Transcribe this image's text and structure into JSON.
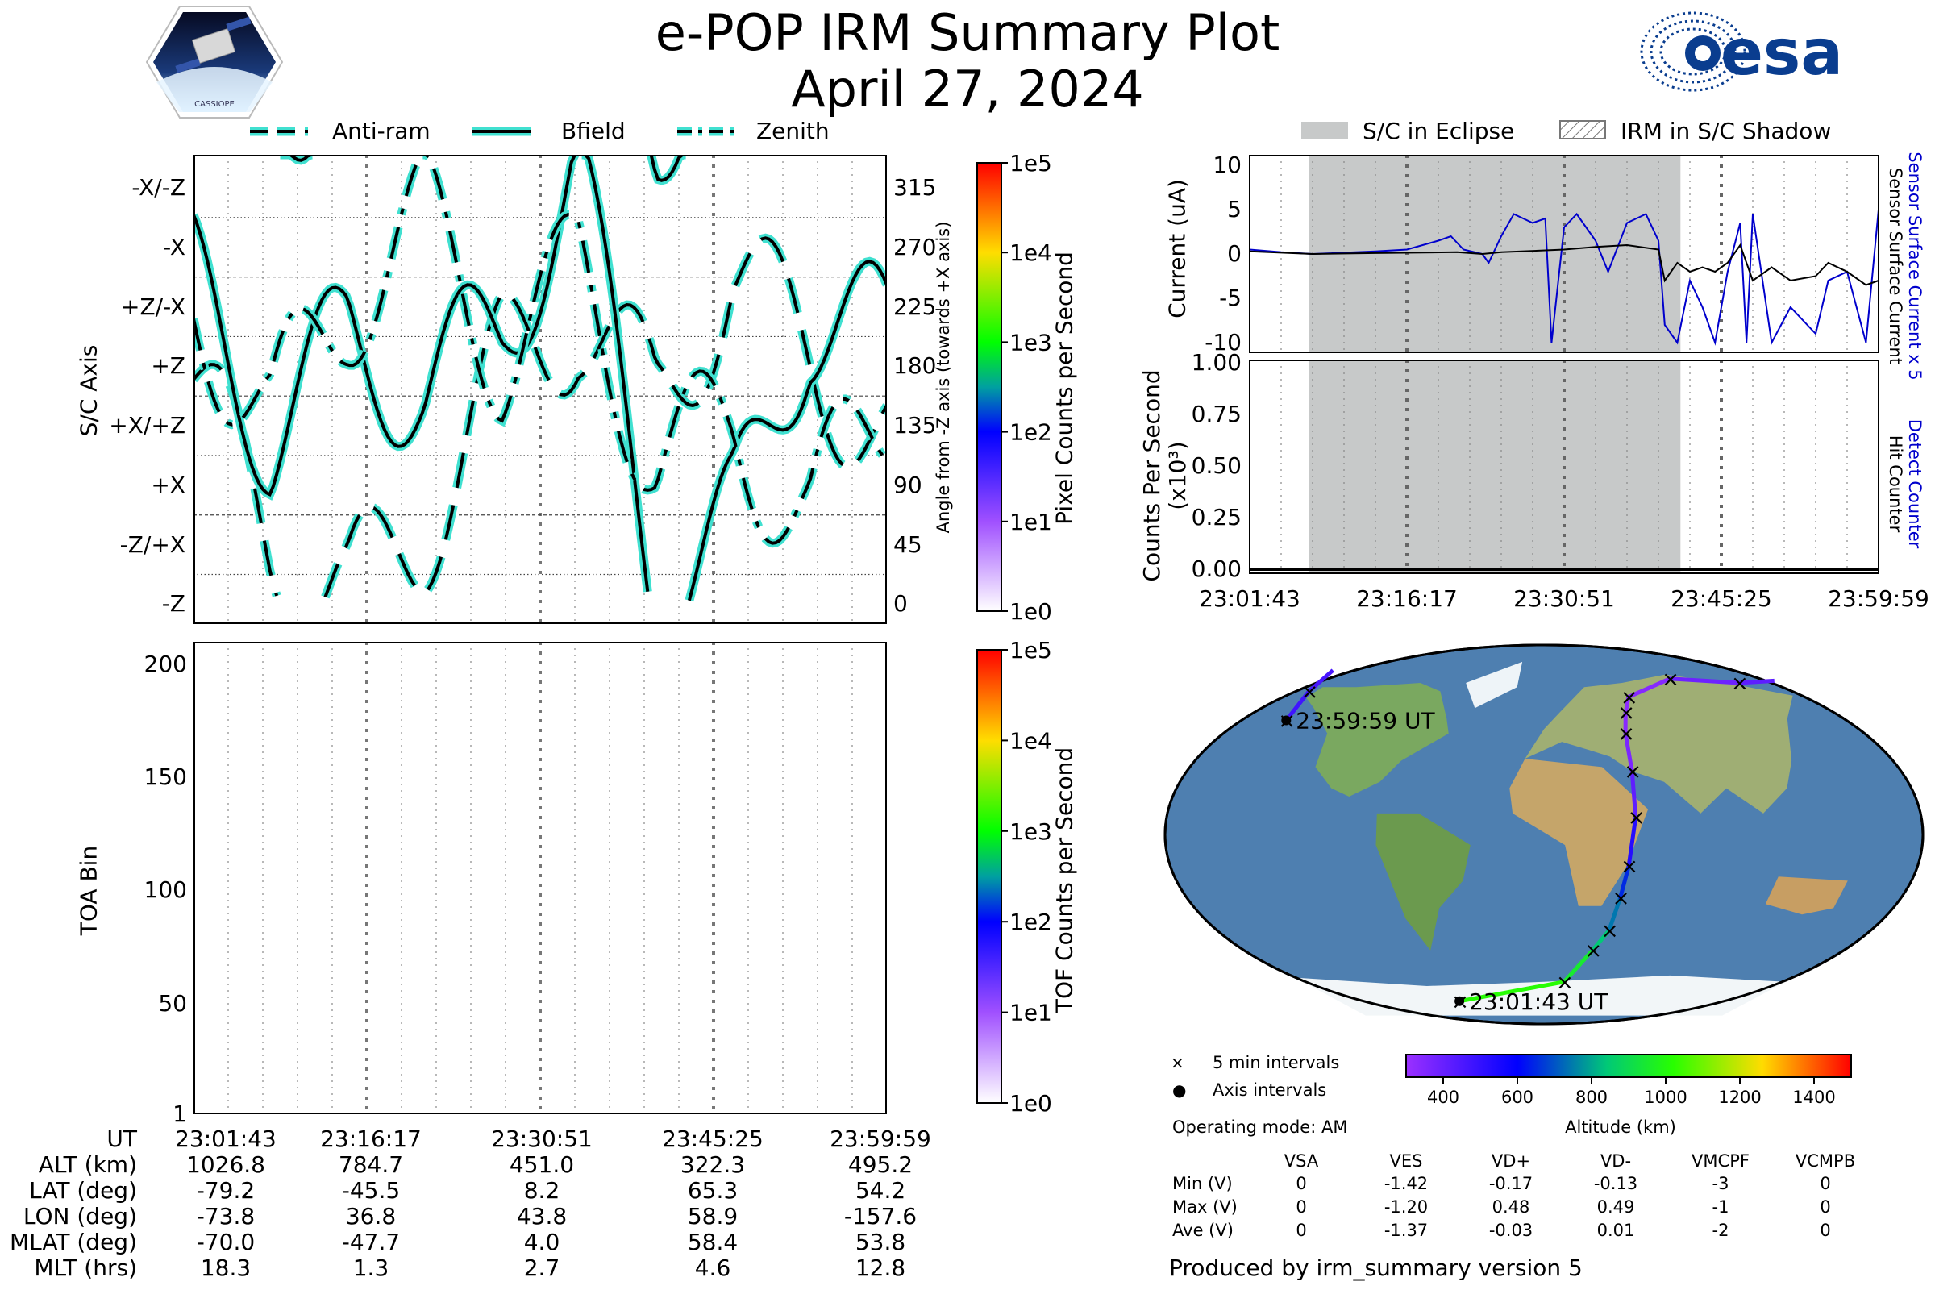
{
  "title": "e-POP IRM Summary Plot",
  "date": "April 27, 2024",
  "logos": {
    "left": "CASSIOPE",
    "right": "esa"
  },
  "colors": {
    "trace_fill": "#40e0d0",
    "trace_edge": "#000000",
    "eclipse": "#c7c9c9",
    "sensor": "#0000cc",
    "surface": "#000000",
    "track_low": "#9b30ff",
    "track_high": "#ff0000"
  },
  "orientation_legend": [
    {
      "label": "Anti-ram",
      "style": "dash"
    },
    {
      "label": "Bfield",
      "style": "solid"
    },
    {
      "label": "Zenith",
      "style": "dashdot"
    }
  ],
  "eclipse_legend": [
    {
      "label": "S/C in Eclipse",
      "style": "fill"
    },
    {
      "label": "IRM in S/C Shadow",
      "style": "hatch"
    }
  ],
  "chart_data": [
    {
      "type": "line",
      "name": "orientation",
      "ylabel": "S/C Axis",
      "y2label": "Angle from -Z axis (towards +X axis)",
      "ytick_labels": [
        "-Z",
        "-Z/+X",
        "+X",
        "+X/+Z",
        "+Z",
        "+Z/-X",
        "-X",
        "-X/-Z"
      ],
      "y2ticks": [
        0,
        45,
        90,
        135,
        180,
        225,
        270,
        315
      ],
      "ylim": [
        -15,
        340
      ],
      "series": [
        {
          "name": "Anti-ram",
          "style": "dash",
          "values": [
            170,
            45,
            5,
            60,
            180,
            220,
            150,
            250,
            190,
            120
          ]
        },
        {
          "name": "Bfield",
          "style": "solid",
          "values": [
            240,
            130,
            200,
            160,
            210,
            330,
            10,
            60,
            220,
            200
          ]
        },
        {
          "name": "Zenith",
          "style": "dashdot",
          "values": [
            230,
            140,
            230,
            290,
            190,
            250,
            110,
            130,
            70,
            150
          ]
        }
      ],
      "colorbar": {
        "label": "Pixel Counts per Second",
        "ticks": [
          "1e0",
          "1e1",
          "1e2",
          "1e3",
          "1e4",
          "1e5"
        ]
      }
    },
    {
      "type": "heatmap",
      "name": "toa",
      "ylabel": "TOA Bin",
      "yticks": [
        1,
        50,
        100,
        150,
        200
      ],
      "ylim": [
        1,
        210
      ],
      "values": [],
      "colorbar": {
        "label": "TOF Counts per Second",
        "ticks": [
          "1e0",
          "1e1",
          "1e2",
          "1e3",
          "1e4",
          "1e5"
        ]
      }
    },
    {
      "type": "line",
      "name": "current",
      "ylabel": "Current (uA)",
      "y2label_top": "Sensor Surface Current x 5",
      "y2label_bottom": "Sensor Surface Current",
      "yticks": [
        -10,
        -5,
        0,
        5,
        10
      ],
      "ylim": [
        -11,
        11
      ],
      "x_tick_labels": [
        "23:01:43",
        "23:16:17",
        "23:30:51",
        "23:45:25",
        "23:59:59"
      ],
      "eclipse_range_fraction": [
        0.094,
        0.685
      ],
      "series": [
        {
          "name": "Sensor Surface Current x 5",
          "color": "#0000cc",
          "x": [
            0,
            0.05,
            0.1,
            0.2,
            0.25,
            0.3,
            0.32,
            0.34,
            0.37,
            0.38,
            0.4,
            0.42,
            0.45,
            0.47,
            0.48,
            0.5,
            0.52,
            0.55,
            0.57,
            0.6,
            0.63,
            0.65,
            0.66,
            0.68,
            0.7,
            0.72,
            0.74,
            0.76,
            0.78,
            0.79,
            0.8,
            0.83,
            0.86,
            0.9,
            0.92,
            0.95,
            0.98,
            1.0
          ],
          "y": [
            0.5,
            0.2,
            0.0,
            0.3,
            0.5,
            1.5,
            2.0,
            0.5,
            0.0,
            -1.0,
            2.0,
            4.5,
            3.5,
            4.0,
            -10.0,
            3.0,
            4.5,
            1.5,
            -2.0,
            3.5,
            4.5,
            1.5,
            -8.0,
            -10.0,
            -3.0,
            -6.0,
            -10.0,
            -2.0,
            3.5,
            -10.0,
            4.5,
            -10.0,
            -6.0,
            -9.0,
            -3.0,
            -2.0,
            -10.0,
            5.0
          ]
        },
        {
          "name": "Sensor Surface Current",
          "color": "#000000",
          "x": [
            0,
            0.1,
            0.2,
            0.33,
            0.37,
            0.4,
            0.5,
            0.55,
            0.6,
            0.65,
            0.66,
            0.68,
            0.7,
            0.72,
            0.74,
            0.76,
            0.78,
            0.8,
            0.83,
            0.86,
            0.9,
            0.92,
            0.95,
            0.98,
            1.0
          ],
          "y": [
            0.3,
            0.0,
            0.1,
            0.2,
            0.0,
            0.2,
            0.5,
            0.8,
            1.0,
            0.5,
            -3.0,
            -1.0,
            -2.0,
            -1.5,
            -2.0,
            -1.0,
            1.0,
            -3.0,
            -1.5,
            -3.0,
            -2.5,
            -1.0,
            -2.0,
            -3.5,
            -3.0
          ]
        }
      ]
    },
    {
      "type": "line",
      "name": "counts",
      "ylabel": "Counts Per Second (x10³)",
      "y2label_top": "Detect Counter",
      "y2label_bottom": "Hit Counter",
      "yticks": [
        "0.00",
        "0.25",
        "0.50",
        "0.75",
        "1.00"
      ],
      "ylim": [
        0,
        1
      ],
      "series": [
        {
          "name": "Detect Counter",
          "color": "#0000cc",
          "x": [
            0,
            1
          ],
          "y": [
            0,
            0
          ]
        },
        {
          "name": "Hit Counter",
          "color": "#000000",
          "x": [
            0,
            1
          ],
          "y": [
            0,
            0
          ]
        }
      ]
    },
    {
      "type": "scatter",
      "name": "ground-track",
      "colorbar": {
        "label": "Altitude (km)",
        "ticks": [
          400,
          600,
          800,
          1000,
          1200,
          1400
        ],
        "range": [
          300,
          1500
        ]
      },
      "track": [
        {
          "lon": -73.8,
          "lat": -79.2,
          "alt": 1026.8
        },
        {
          "lon": 15.0,
          "lat": -70.0,
          "alt": 1000
        },
        {
          "lon": 30.0,
          "lat": -55.0,
          "alt": 900
        },
        {
          "lon": 36.8,
          "lat": -45.5,
          "alt": 784.7
        },
        {
          "lon": 39.0,
          "lat": -30.0,
          "alt": 700
        },
        {
          "lon": 41.0,
          "lat": -15.0,
          "alt": 600
        },
        {
          "lon": 43.8,
          "lat": 8.2,
          "alt": 451.0
        },
        {
          "lon": 45.0,
          "lat": 30.0,
          "alt": 380
        },
        {
          "lon": 47.0,
          "lat": 48.0,
          "alt": 340
        },
        {
          "lon": 52.0,
          "lat": 58.0,
          "alt": 330
        },
        {
          "lon": 58.9,
          "lat": 65.3,
          "alt": 322.3
        },
        {
          "lon": 100.0,
          "lat": 74.0,
          "alt": 360
        },
        {
          "lon": 150.0,
          "lat": 72.0,
          "alt": 420
        },
        {
          "lon": -170.0,
          "lat": 68.0,
          "alt": 460
        },
        {
          "lon": -157.6,
          "lat": 54.2,
          "alt": 495.2
        }
      ],
      "labels": [
        {
          "text": "23:01:43 UT",
          "lon": -73.8,
          "lat": -79.2
        },
        {
          "text": "23:59:59 UT",
          "lon": -157.6,
          "lat": 54.2
        }
      ],
      "markers": {
        "five_min": "5 min intervals",
        "axis": "Axis intervals"
      }
    }
  ],
  "time_ticks": [
    "23:01:43",
    "23:16:17",
    "23:30:51",
    "23:45:25",
    "23:59:59"
  ],
  "ephemeris": {
    "rows": [
      {
        "label": "UT",
        "values": [
          "23:01:43",
          "23:16:17",
          "23:30:51",
          "23:45:25",
          "23:59:59"
        ]
      },
      {
        "label": "ALT (km)",
        "values": [
          "1026.8",
          "784.7",
          "451.0",
          "322.3",
          "495.2"
        ]
      },
      {
        "label": "LAT (deg)",
        "values": [
          "-79.2",
          "-45.5",
          "8.2",
          "65.3",
          "54.2"
        ]
      },
      {
        "label": "LON (deg)",
        "values": [
          "-73.8",
          "36.8",
          "43.8",
          "58.9",
          "-157.6"
        ]
      },
      {
        "label": "MLAT (deg)",
        "values": [
          "-70.0",
          "-47.7",
          "4.0",
          "58.4",
          "53.8"
        ]
      },
      {
        "label": "MLT (hrs)",
        "values": [
          "18.3",
          "1.3",
          "2.7",
          "4.6",
          "12.8"
        ]
      }
    ]
  },
  "operating_mode": "Operating mode: AM",
  "voltages": {
    "headers": [
      "VSA",
      "VES",
      "VD+",
      "VD-",
      "VMCPF",
      "VCMPB"
    ],
    "rows": [
      {
        "label": "Min (V)",
        "values": [
          "0",
          "-1.42",
          "-0.17",
          "-0.13",
          "-3",
          "0"
        ]
      },
      {
        "label": "Max (V)",
        "values": [
          "0",
          "-1.20",
          "0.48",
          "0.49",
          "-1",
          "0"
        ]
      },
      {
        "label": "Ave (V)",
        "values": [
          "0",
          "-1.37",
          "-0.03",
          "0.01",
          "-2",
          "0"
        ]
      }
    ]
  },
  "footer": "Produced by irm_summary version 5"
}
